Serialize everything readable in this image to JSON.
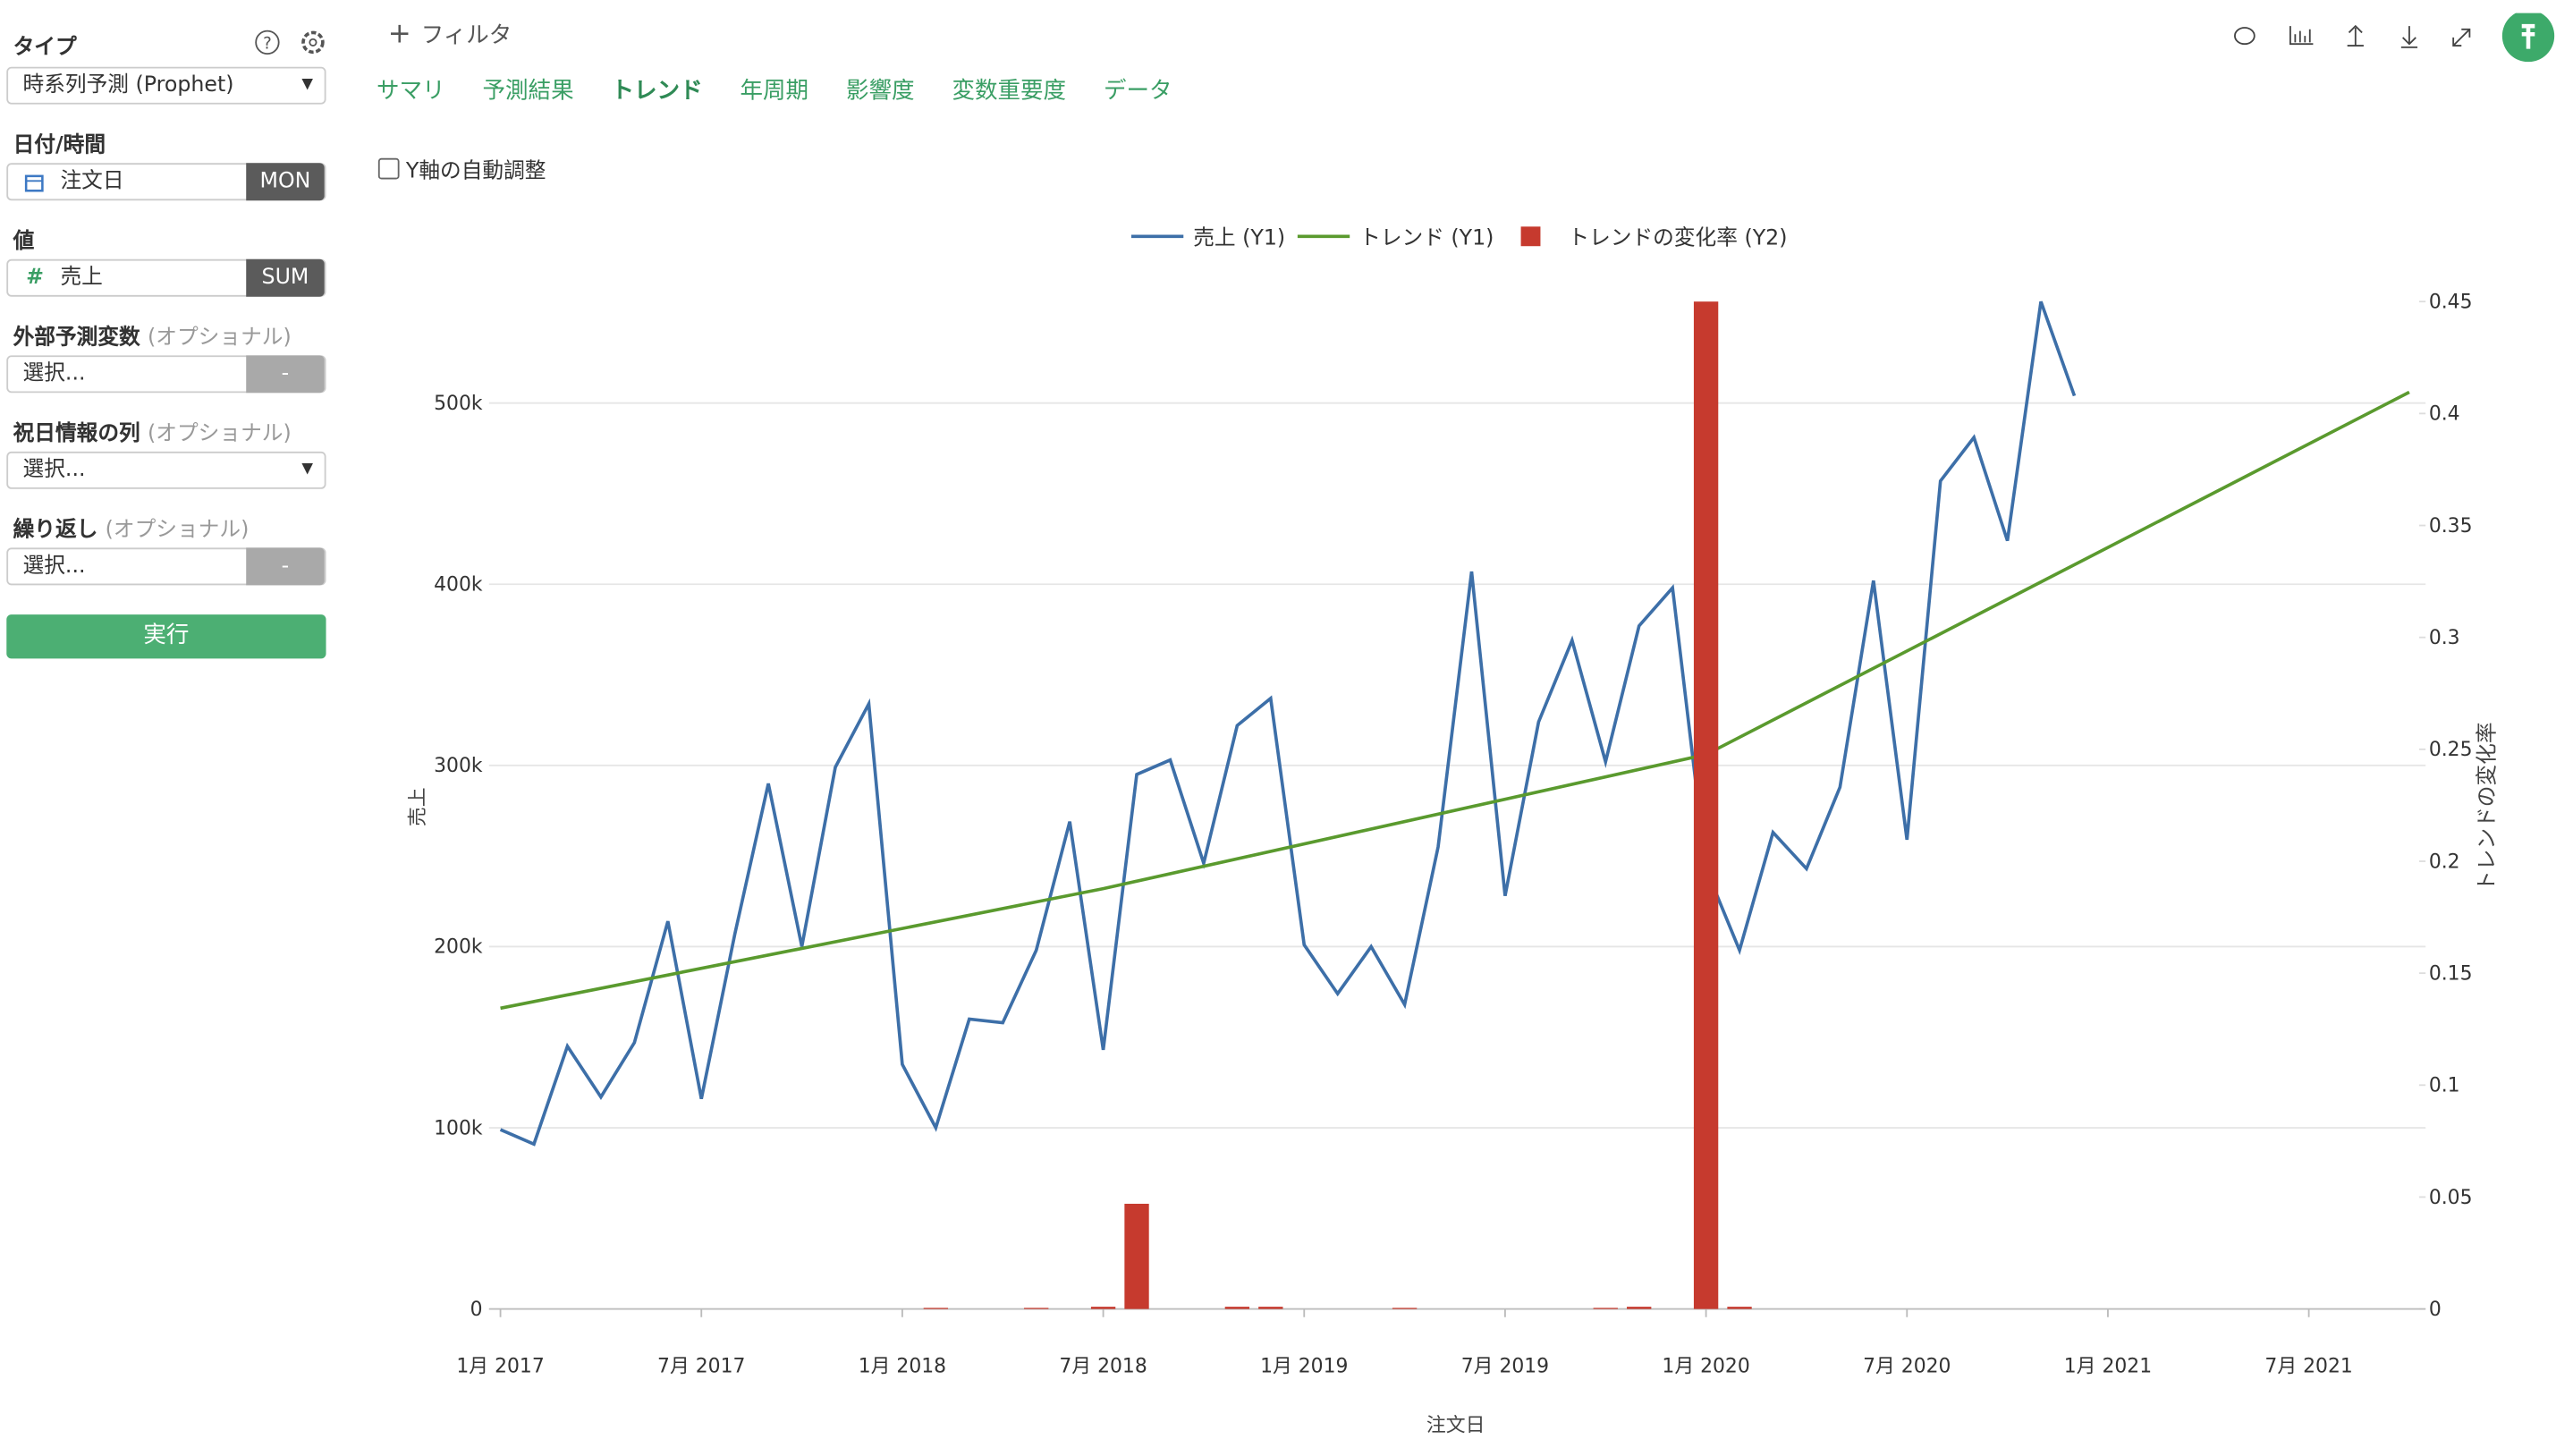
{
  "sidebar": {
    "type_label": "タイプ",
    "type_value": "時系列予測 (Prophet)",
    "date_label": "日付/時間",
    "date_field": "注文日",
    "date_unit": "MON",
    "value_label": "値",
    "value_field": "売上",
    "value_agg": "SUM",
    "fields": [
      {
        "label": "外部予測変数",
        "hint": "(オプショナル)",
        "placeholder": "選択...",
        "button": "-"
      },
      {
        "label": "祝日情報の列",
        "hint": "(オプショナル)",
        "placeholder": "選択..."
      },
      {
        "label": "繰り返し",
        "hint": "(オプショナル)",
        "placeholder": "選択...",
        "button": "-"
      }
    ],
    "run": "実行"
  },
  "toolbar": {
    "filter": "フィルタ"
  },
  "tabs": [
    "サマリ",
    "予測結果",
    "トレンド",
    "年周期",
    "影響度",
    "変数重要度",
    "データ"
  ],
  "active_tab": 2,
  "checkbox": "Y軸の自動調整",
  "chart_data": {
    "type": "line",
    "x_label": "注文日",
    "y_label": "売上",
    "y2_label": "トレンドの変化率",
    "xlim": [
      "2017-01",
      "2021-10"
    ],
    "xticks": [
      {
        "value": "2017-01",
        "label": "1月 2017"
      },
      {
        "value": "2017-07",
        "label": "7月 2017"
      },
      {
        "value": "2018-01",
        "label": "1月 2018"
      },
      {
        "value": "2018-07",
        "label": "7月 2018"
      },
      {
        "value": "2019-01",
        "label": "1月 2019"
      },
      {
        "value": "2019-07",
        "label": "7月 2019"
      },
      {
        "value": "2020-01",
        "label": "1月 2020"
      },
      {
        "value": "2020-07",
        "label": "7月 2020"
      },
      {
        "value": "2021-01",
        "label": "1月 2021"
      },
      {
        "value": "2021-07",
        "label": "7月 2021"
      }
    ],
    "ylim": [
      0,
      556000
    ],
    "yticks": [
      0,
      {
        "value": 100000,
        "label": "100k"
      },
      {
        "value": 200000,
        "label": "200k"
      },
      {
        "value": 300000,
        "label": "300k"
      },
      {
        "value": 400000,
        "label": "400k"
      },
      {
        "value": 500000,
        "label": "500k"
      }
    ],
    "y2lim": [
      0,
      0.45
    ],
    "y2ticks": [
      0,
      0.05,
      0.1,
      0.15,
      0.2,
      0.25,
      0.3,
      0.35,
      0.4,
      0.45
    ],
    "grid": true,
    "legend": "top",
    "series": [
      {
        "name": "売上 (Y1)",
        "type": "line",
        "color": "#3d6fa8",
        "x": [
          "2017-01",
          "2017-02",
          "2017-03",
          "2017-04",
          "2017-05",
          "2017-06",
          "2017-07",
          "2017-08",
          "2017-09",
          "2017-10",
          "2017-11",
          "2017-12",
          "2018-01",
          "2018-02",
          "2018-03",
          "2018-04",
          "2018-05",
          "2018-06",
          "2018-07",
          "2018-08",
          "2018-09",
          "2018-10",
          "2018-11",
          "2018-12",
          "2019-01",
          "2019-02",
          "2019-03",
          "2019-04",
          "2019-05",
          "2019-06",
          "2019-07",
          "2019-08",
          "2019-09",
          "2019-10",
          "2019-11",
          "2019-12",
          "2020-01",
          "2020-02",
          "2020-03",
          "2020-04",
          "2020-05",
          "2020-06",
          "2020-07",
          "2020-08",
          "2020-09",
          "2020-10",
          "2020-11",
          "2020-12"
        ],
        "values": [
          99000,
          91000,
          145000,
          117000,
          147000,
          214000,
          116000,
          207000,
          290000,
          200000,
          299000,
          334000,
          135000,
          100000,
          160000,
          158000,
          198000,
          269000,
          143000,
          295000,
          303000,
          246000,
          322000,
          337000,
          201000,
          174000,
          200000,
          168000,
          255000,
          407000,
          228000,
          324000,
          369000,
          302000,
          377000,
          398000,
          243000,
          198000,
          263000,
          243000,
          288000,
          402000,
          259000,
          457000,
          481000,
          424000,
          556000,
          504000
        ]
      },
      {
        "name": "トレンド (Y1)",
        "type": "line",
        "color": "#5a9a2e",
        "x": [
          "2017-01",
          "2018-07",
          "2020-01",
          "2021-10"
        ],
        "values": [
          166000,
          232000,
          306000,
          506000
        ]
      },
      {
        "name": "トレンドの変化率 (Y2)",
        "type": "bar",
        "axis": "y2",
        "color": "#c63a2e",
        "x": [
          "2018-02",
          "2018-05",
          "2018-07",
          "2018-08",
          "2018-11",
          "2018-12",
          "2019-04",
          "2019-10",
          "2019-11",
          "2020-01",
          "2020-02"
        ],
        "values": [
          0.0005,
          0.0005,
          0.001,
          0.047,
          0.001,
          0.001,
          0.0005,
          0.0005,
          0.001,
          0.45,
          0.001
        ]
      }
    ]
  }
}
